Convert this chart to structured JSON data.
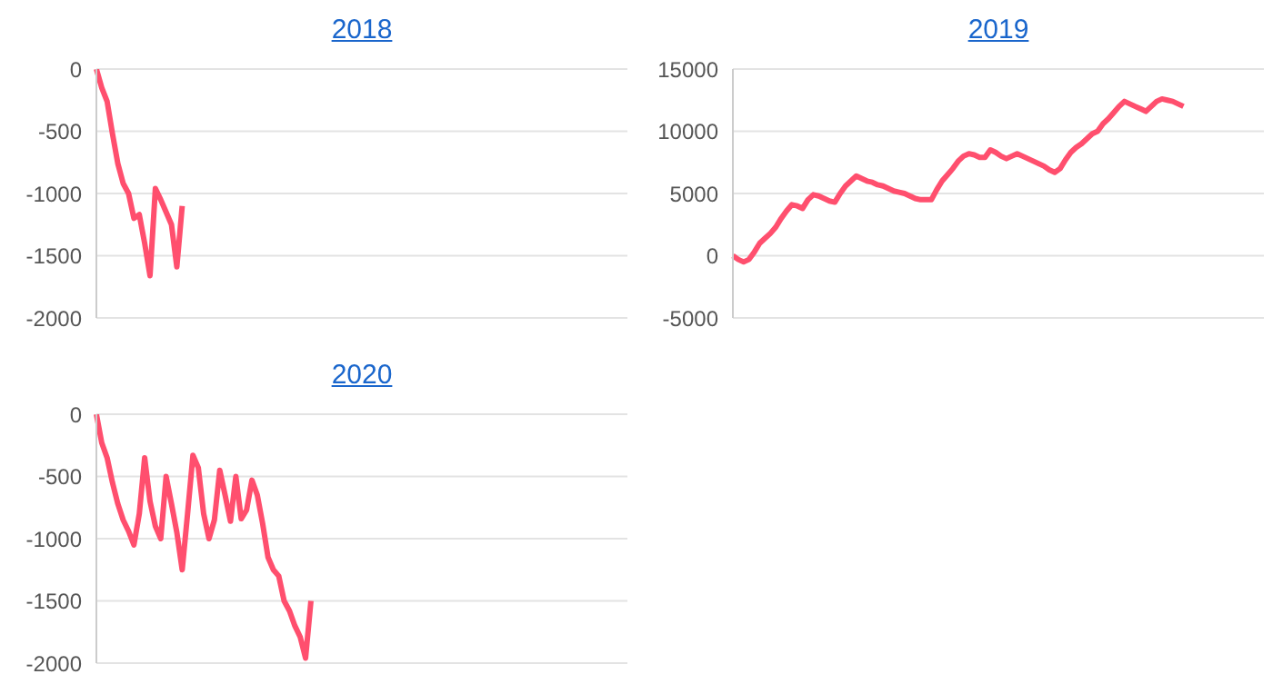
{
  "chart_data": [
    {
      "type": "line",
      "title": "2018",
      "categories": [
        null,
        null,
        null,
        null,
        null,
        null,
        null,
        null,
        null,
        null,
        null,
        null,
        null,
        null,
        null,
        null,
        null,
        null,
        null,
        null,
        null,
        null,
        null,
        null,
        null,
        null,
        null,
        null,
        null,
        null,
        null,
        null,
        null,
        null,
        null,
        null,
        null,
        null,
        null,
        null,
        null,
        null,
        null,
        null,
        null,
        null,
        null,
        null,
        null,
        null,
        null,
        null,
        null,
        null,
        null,
        null,
        null,
        null,
        null,
        null,
        null,
        null,
        null,
        null,
        null,
        null,
        null,
        null,
        null,
        null,
        null,
        null,
        null,
        null,
        null,
        null,
        null,
        null,
        null,
        null,
        null,
        null,
        null,
        null,
        null,
        null,
        null,
        null,
        null,
        null,
        null,
        null,
        null,
        null,
        null,
        null,
        null,
        null,
        null,
        null
      ],
      "series": [
        {
          "color": "#ff4f6e",
          "values": [
            0,
            -150,
            -260,
            -520,
            -760,
            -920,
            -1000,
            -1200,
            -1170,
            -1400,
            -1660,
            -960,
            -1050,
            -1150,
            -1250,
            -1590,
            -1100,
            null,
            null,
            null,
            null,
            null,
            null,
            null,
            null,
            null,
            null,
            null,
            null,
            null,
            null,
            null,
            null,
            null,
            null,
            null,
            null,
            null,
            null,
            null,
            null,
            null,
            null,
            null,
            null,
            null,
            null,
            null,
            null,
            null,
            null,
            null,
            null,
            null,
            null,
            null,
            null,
            null,
            null,
            null,
            null,
            null,
            null,
            null,
            null,
            null,
            null,
            null,
            null,
            null,
            null,
            null,
            null,
            null,
            null,
            null,
            null,
            null,
            null,
            null,
            null,
            null,
            null,
            null,
            null,
            null,
            null,
            null,
            null,
            null,
            null,
            null,
            null,
            null,
            null,
            null,
            null,
            null,
            null,
            null
          ]
        }
      ],
      "ylim": [
        -2000,
        0
      ],
      "yticks": [
        -2000,
        -1500,
        -1000,
        -500,
        0
      ],
      "grid": "y",
      "tick_labels": "y",
      "marker": "none"
    },
    {
      "type": "line",
      "title": "2019",
      "categories": [
        null,
        null,
        null,
        null,
        null,
        null,
        null,
        null,
        null,
        null,
        null,
        null,
        null,
        null,
        null,
        null,
        null,
        null,
        null,
        null,
        null,
        null,
        null,
        null,
        null,
        null,
        null,
        null,
        null,
        null,
        null,
        null,
        null,
        null,
        null,
        null,
        null,
        null,
        null,
        null,
        null,
        null,
        null,
        null,
        null,
        null,
        null,
        null,
        null,
        null,
        null,
        null,
        null,
        null,
        null,
        null,
        null,
        null,
        null,
        null,
        null,
        null,
        null,
        null,
        null,
        null,
        null,
        null,
        null,
        null,
        null,
        null,
        null,
        null,
        null,
        null,
        null,
        null,
        null,
        null,
        null,
        null,
        null,
        null,
        null,
        null,
        null,
        null,
        null,
        null,
        null,
        null,
        null,
        null,
        null,
        null,
        null,
        null,
        null,
        null
      ],
      "series": [
        {
          "color": "#ff4f6e",
          "values": [
            0,
            -300,
            -500,
            -300,
            300,
            1000,
            1400,
            1800,
            2300,
            3000,
            3600,
            4100,
            4000,
            3800,
            4500,
            4900,
            4800,
            4600,
            4400,
            4300,
            5000,
            5600,
            6000,
            6400,
            6200,
            6000,
            5900,
            5700,
            5600,
            5400,
            5200,
            5100,
            5000,
            4800,
            4600,
            4500,
            4500,
            4500,
            5300,
            6000,
            6500,
            7000,
            7600,
            8000,
            8200,
            8100,
            7900,
            7900,
            8500,
            8300,
            8000,
            7800,
            8000,
            8200,
            8000,
            7800,
            7600,
            7400,
            7200,
            6900,
            6700,
            7000,
            7700,
            8300,
            8700,
            9000,
            9400,
            9800,
            10000,
            10600,
            11000,
            11500,
            12000,
            12400,
            12200,
            12000,
            11800,
            11600,
            12000,
            12400,
            12600,
            12500,
            12400,
            12200,
            12000,
            null,
            null,
            null,
            null,
            null,
            null,
            null,
            null,
            null,
            null,
            null,
            null,
            null,
            null,
            null
          ]
        }
      ],
      "ylim": [
        -5000,
        15000
      ],
      "yticks": [
        -5000,
        0,
        5000,
        10000,
        15000
      ],
      "grid": "y",
      "tick_labels": "y",
      "marker": "none"
    },
    {
      "type": "line",
      "title": "2020",
      "categories": [
        null,
        null,
        null,
        null,
        null,
        null,
        null,
        null,
        null,
        null,
        null,
        null,
        null,
        null,
        null,
        null,
        null,
        null,
        null,
        null,
        null,
        null,
        null,
        null,
        null,
        null,
        null,
        null,
        null,
        null,
        null,
        null,
        null,
        null,
        null,
        null,
        null,
        null,
        null,
        null,
        null,
        null,
        null,
        null,
        null,
        null,
        null,
        null,
        null,
        null,
        null,
        null,
        null,
        null,
        null,
        null,
        null,
        null,
        null,
        null,
        null,
        null,
        null,
        null,
        null,
        null,
        null,
        null,
        null,
        null,
        null,
        null,
        null,
        null,
        null,
        null,
        null,
        null,
        null,
        null,
        null,
        null,
        null,
        null,
        null,
        null,
        null,
        null,
        null,
        null,
        null,
        null,
        null,
        null,
        null,
        null,
        null,
        null,
        null,
        null
      ],
      "series": [
        {
          "color": "#ff4f6e",
          "values": [
            0,
            -230,
            -350,
            -550,
            -720,
            -850,
            -940,
            -1050,
            -800,
            -350,
            -700,
            -900,
            -1000,
            -500,
            -720,
            -950,
            -1250,
            -800,
            -330,
            -430,
            -800,
            -1000,
            -850,
            -450,
            -650,
            -860,
            -500,
            -840,
            -770,
            -530,
            -650,
            -880,
            -1150,
            -1250,
            -1300,
            -1500,
            -1580,
            -1700,
            -1790,
            -1960,
            -1500,
            null,
            null,
            null,
            null,
            null,
            null,
            null,
            null,
            null,
            null,
            null,
            null,
            null,
            null,
            null,
            null,
            null,
            null,
            null,
            null,
            null,
            null,
            null,
            null,
            null,
            null,
            null,
            null,
            null,
            null,
            null,
            null,
            null,
            null,
            null,
            null,
            null,
            null,
            null,
            null,
            null,
            null,
            null,
            null,
            null,
            null,
            null,
            null,
            null,
            null,
            null,
            null,
            null,
            null,
            null,
            null,
            null,
            null,
            null
          ]
        }
      ],
      "ylim": [
        -2000,
        0
      ],
      "yticks": [
        -2000,
        -1500,
        -1000,
        -500,
        0
      ],
      "grid": "y",
      "tick_labels": "y",
      "marker": "none"
    }
  ]
}
